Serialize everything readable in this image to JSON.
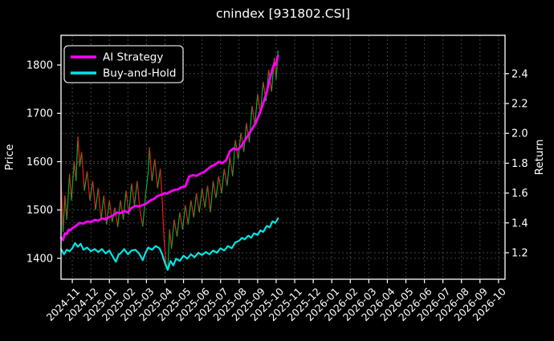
{
  "figure": {
    "title": "cnindex [931802.CSI]",
    "background_color": "#000000",
    "text_color": "#ffffff",
    "grid_color": "#4a4a4a",
    "border_color": "#ffffff"
  },
  "legend": {
    "position": "upper left",
    "items": [
      {
        "label": "AI Strategy",
        "color": "#ff00ff"
      },
      {
        "label": "Buy-and-Hold",
        "color": "#00e5e5"
      }
    ]
  },
  "chart_data": {
    "type": "line",
    "title": "cnindex [931802.CSI]",
    "x_unit": "months after 2024-11 tick; axis spans 2024-11 to 2026-10, price data ends ~2025-10",
    "grid": true,
    "legend_position": "upper left",
    "x_axis": {
      "range_months": [
        -0.61,
        23.35
      ],
      "tick_labels": [
        "2024-11",
        "2024-12",
        "2025-01",
        "2025-02",
        "2025-03",
        "2025-04",
        "2025-05",
        "2025-06",
        "2025-07",
        "2025-08",
        "2025-09",
        "2025-10",
        "2025-11",
        "2025-12",
        "2026-01",
        "2026-02",
        "2026-03",
        "2026-04",
        "2026-05",
        "2026-06",
        "2026-07",
        "2026-08",
        "2026-09",
        "2026-10"
      ]
    },
    "y_left": {
      "label": "Price",
      "ticks": [
        1400,
        1500,
        1600,
        1700,
        1800
      ],
      "range": [
        1356.8,
        1861.4
      ]
    },
    "y_right": {
      "label": "Return",
      "ticks": [
        1.2,
        1.4,
        1.6,
        1.8,
        2.0,
        2.2,
        2.4
      ],
      "range": [
        1.0226,
        2.657
      ]
    },
    "series": [
      {
        "name": "cnindex price (up/down colored)",
        "axis": "left",
        "style": "updown",
        "up_color": "#00b32e",
        "down_color": "#ff1414",
        "width": 1.2,
        "points": [
          [
            -0.61,
            1560
          ],
          [
            -0.5,
            1455
          ],
          [
            -0.4,
            1530
          ],
          [
            -0.3,
            1480
          ],
          [
            -0.15,
            1575
          ],
          [
            -0.05,
            1520
          ],
          [
            0.1,
            1600
          ],
          [
            0.2,
            1560
          ],
          [
            0.3,
            1652
          ],
          [
            0.4,
            1590
          ],
          [
            0.5,
            1620
          ],
          [
            0.65,
            1540
          ],
          [
            0.8,
            1580
          ],
          [
            0.95,
            1520
          ],
          [
            1.1,
            1560
          ],
          [
            1.25,
            1500
          ],
          [
            1.4,
            1545
          ],
          [
            1.55,
            1480
          ],
          [
            1.7,
            1530
          ],
          [
            1.85,
            1470
          ],
          [
            2.0,
            1520
          ],
          [
            2.15,
            1475
          ],
          [
            2.3,
            1505
          ],
          [
            2.45,
            1465
          ],
          [
            2.6,
            1520
          ],
          [
            2.75,
            1480
          ],
          [
            2.9,
            1540
          ],
          [
            3.05,
            1490
          ],
          [
            3.2,
            1555
          ],
          [
            3.35,
            1510
          ],
          [
            3.5,
            1560
          ],
          [
            3.65,
            1500
          ],
          [
            3.8,
            1466
          ],
          [
            3.95,
            1530
          ],
          [
            4.1,
            1580
          ],
          [
            4.16,
            1630
          ],
          [
            4.3,
            1560
          ],
          [
            4.45,
            1605
          ],
          [
            4.6,
            1545
          ],
          [
            4.75,
            1585
          ],
          [
            4.85,
            1520
          ],
          [
            4.95,
            1440
          ],
          [
            5.05,
            1390
          ],
          [
            5.15,
            1375
          ],
          [
            5.25,
            1460
          ],
          [
            5.35,
            1420
          ],
          [
            5.5,
            1480
          ],
          [
            5.65,
            1445
          ],
          [
            5.8,
            1495
          ],
          [
            5.95,
            1460
          ],
          [
            6.1,
            1510
          ],
          [
            6.25,
            1470
          ],
          [
            6.4,
            1520
          ],
          [
            6.55,
            1485
          ],
          [
            6.7,
            1535
          ],
          [
            6.85,
            1495
          ],
          [
            7.0,
            1545
          ],
          [
            7.15,
            1505
          ],
          [
            7.3,
            1550
          ],
          [
            7.45,
            1495
          ],
          [
            7.6,
            1560
          ],
          [
            7.75,
            1525
          ],
          [
            7.9,
            1570
          ],
          [
            8.05,
            1535
          ],
          [
            8.2,
            1585
          ],
          [
            8.35,
            1550
          ],
          [
            8.5,
            1610
          ],
          [
            8.65,
            1570
          ],
          [
            8.8,
            1645
          ],
          [
            8.95,
            1605
          ],
          [
            9.1,
            1660
          ],
          [
            9.25,
            1620
          ],
          [
            9.4,
            1680
          ],
          [
            9.55,
            1640
          ],
          [
            9.7,
            1715
          ],
          [
            9.85,
            1675
          ],
          [
            10.0,
            1740
          ],
          [
            10.15,
            1700
          ],
          [
            10.3,
            1765
          ],
          [
            10.45,
            1725
          ],
          [
            10.6,
            1790
          ],
          [
            10.75,
            1745
          ],
          [
            10.9,
            1815
          ],
          [
            11.0,
            1770
          ],
          [
            11.1,
            1830
          ]
        ]
      },
      {
        "name": "AI Strategy",
        "axis": "right",
        "style": "line",
        "color": "#ff00ff",
        "width": 2.8,
        "points": [
          [
            -0.61,
            1.3
          ],
          [
            -0.5,
            1.285
          ],
          [
            -0.4,
            1.33
          ],
          [
            -0.3,
            1.325
          ],
          [
            -0.2,
            1.355
          ],
          [
            -0.1,
            1.35
          ],
          [
            0,
            1.365
          ],
          [
            0.2,
            1.38
          ],
          [
            0.4,
            1.4
          ],
          [
            0.6,
            1.395
          ],
          [
            0.8,
            1.41
          ],
          [
            1.0,
            1.405
          ],
          [
            1.2,
            1.42
          ],
          [
            1.4,
            1.415
          ],
          [
            1.6,
            1.43
          ],
          [
            1.8,
            1.425
          ],
          [
            2.0,
            1.44
          ],
          [
            2.2,
            1.45
          ],
          [
            2.4,
            1.47
          ],
          [
            2.6,
            1.465
          ],
          [
            2.8,
            1.48
          ],
          [
            3.0,
            1.47
          ],
          [
            3.2,
            1.5
          ],
          [
            3.4,
            1.515
          ],
          [
            3.6,
            1.51
          ],
          [
            3.8,
            1.52
          ],
          [
            4.0,
            1.53
          ],
          [
            4.2,
            1.55
          ],
          [
            4.4,
            1.56
          ],
          [
            4.6,
            1.58
          ],
          [
            4.8,
            1.59
          ],
          [
            5.0,
            1.6
          ],
          [
            5.1,
            1.595
          ],
          [
            5.3,
            1.61
          ],
          [
            5.5,
            1.62
          ],
          [
            5.7,
            1.625
          ],
          [
            5.9,
            1.64
          ],
          [
            6.1,
            1.645
          ],
          [
            6.3,
            1.71
          ],
          [
            6.5,
            1.72
          ],
          [
            6.7,
            1.715
          ],
          [
            6.9,
            1.73
          ],
          [
            7.1,
            1.74
          ],
          [
            7.3,
            1.76
          ],
          [
            7.5,
            1.78
          ],
          [
            7.7,
            1.79
          ],
          [
            7.9,
            1.81
          ],
          [
            8.1,
            1.8
          ],
          [
            8.3,
            1.82
          ],
          [
            8.5,
            1.88
          ],
          [
            8.7,
            1.9
          ],
          [
            8.9,
            1.89
          ],
          [
            9.1,
            1.91
          ],
          [
            9.3,
            1.95
          ],
          [
            9.5,
            1.99
          ],
          [
            9.7,
            2.03
          ],
          [
            9.9,
            2.07
          ],
          [
            10.1,
            2.13
          ],
          [
            10.3,
            2.2
          ],
          [
            10.5,
            2.28
          ],
          [
            10.65,
            2.36
          ],
          [
            10.8,
            2.43
          ],
          [
            10.9,
            2.47
          ],
          [
            11.0,
            2.46
          ],
          [
            11.05,
            2.5
          ],
          [
            11.1,
            2.52
          ]
        ]
      },
      {
        "name": "Buy-and-Hold",
        "axis": "right",
        "style": "line",
        "color": "#00e5e5",
        "width": 2.2,
        "points": [
          [
            -0.61,
            1.225
          ],
          [
            -0.45,
            1.19
          ],
          [
            -0.3,
            1.22
          ],
          [
            -0.15,
            1.21
          ],
          [
            0,
            1.23
          ],
          [
            0.15,
            1.265
          ],
          [
            0.3,
            1.24
          ],
          [
            0.45,
            1.26
          ],
          [
            0.6,
            1.22
          ],
          [
            0.8,
            1.235
          ],
          [
            1.0,
            1.21
          ],
          [
            1.2,
            1.225
          ],
          [
            1.4,
            1.205
          ],
          [
            1.6,
            1.225
          ],
          [
            1.8,
            1.195
          ],
          [
            2.0,
            1.215
          ],
          [
            2.2,
            1.17
          ],
          [
            2.35,
            1.14
          ],
          [
            2.5,
            1.19
          ],
          [
            2.6,
            1.195
          ],
          [
            2.8,
            1.225
          ],
          [
            3.0,
            1.19
          ],
          [
            3.2,
            1.215
          ],
          [
            3.4,
            1.22
          ],
          [
            3.6,
            1.195
          ],
          [
            3.8,
            1.15
          ],
          [
            3.95,
            1.2
          ],
          [
            4.1,
            1.235
          ],
          [
            4.3,
            1.22
          ],
          [
            4.5,
            1.245
          ],
          [
            4.7,
            1.23
          ],
          [
            4.85,
            1.19
          ],
          [
            5.0,
            1.13
          ],
          [
            5.15,
            1.085
          ],
          [
            5.3,
            1.145
          ],
          [
            5.45,
            1.115
          ],
          [
            5.6,
            1.16
          ],
          [
            5.8,
            1.145
          ],
          [
            6.0,
            1.18
          ],
          [
            6.2,
            1.16
          ],
          [
            6.4,
            1.19
          ],
          [
            6.6,
            1.17
          ],
          [
            6.8,
            1.2
          ],
          [
            7.0,
            1.185
          ],
          [
            7.2,
            1.205
          ],
          [
            7.4,
            1.19
          ],
          [
            7.6,
            1.215
          ],
          [
            7.8,
            1.2
          ],
          [
            8.0,
            1.23
          ],
          [
            8.2,
            1.215
          ],
          [
            8.4,
            1.245
          ],
          [
            8.6,
            1.23
          ],
          [
            8.8,
            1.27
          ],
          [
            9.0,
            1.28
          ],
          [
            9.15,
            1.3
          ],
          [
            9.3,
            1.29
          ],
          [
            9.5,
            1.315
          ],
          [
            9.65,
            1.3
          ],
          [
            9.8,
            1.33
          ],
          [
            10.0,
            1.32
          ],
          [
            10.15,
            1.35
          ],
          [
            10.3,
            1.34
          ],
          [
            10.5,
            1.38
          ],
          [
            10.65,
            1.37
          ],
          [
            10.8,
            1.41
          ],
          [
            10.95,
            1.4
          ],
          [
            11.1,
            1.43
          ]
        ]
      }
    ]
  }
}
